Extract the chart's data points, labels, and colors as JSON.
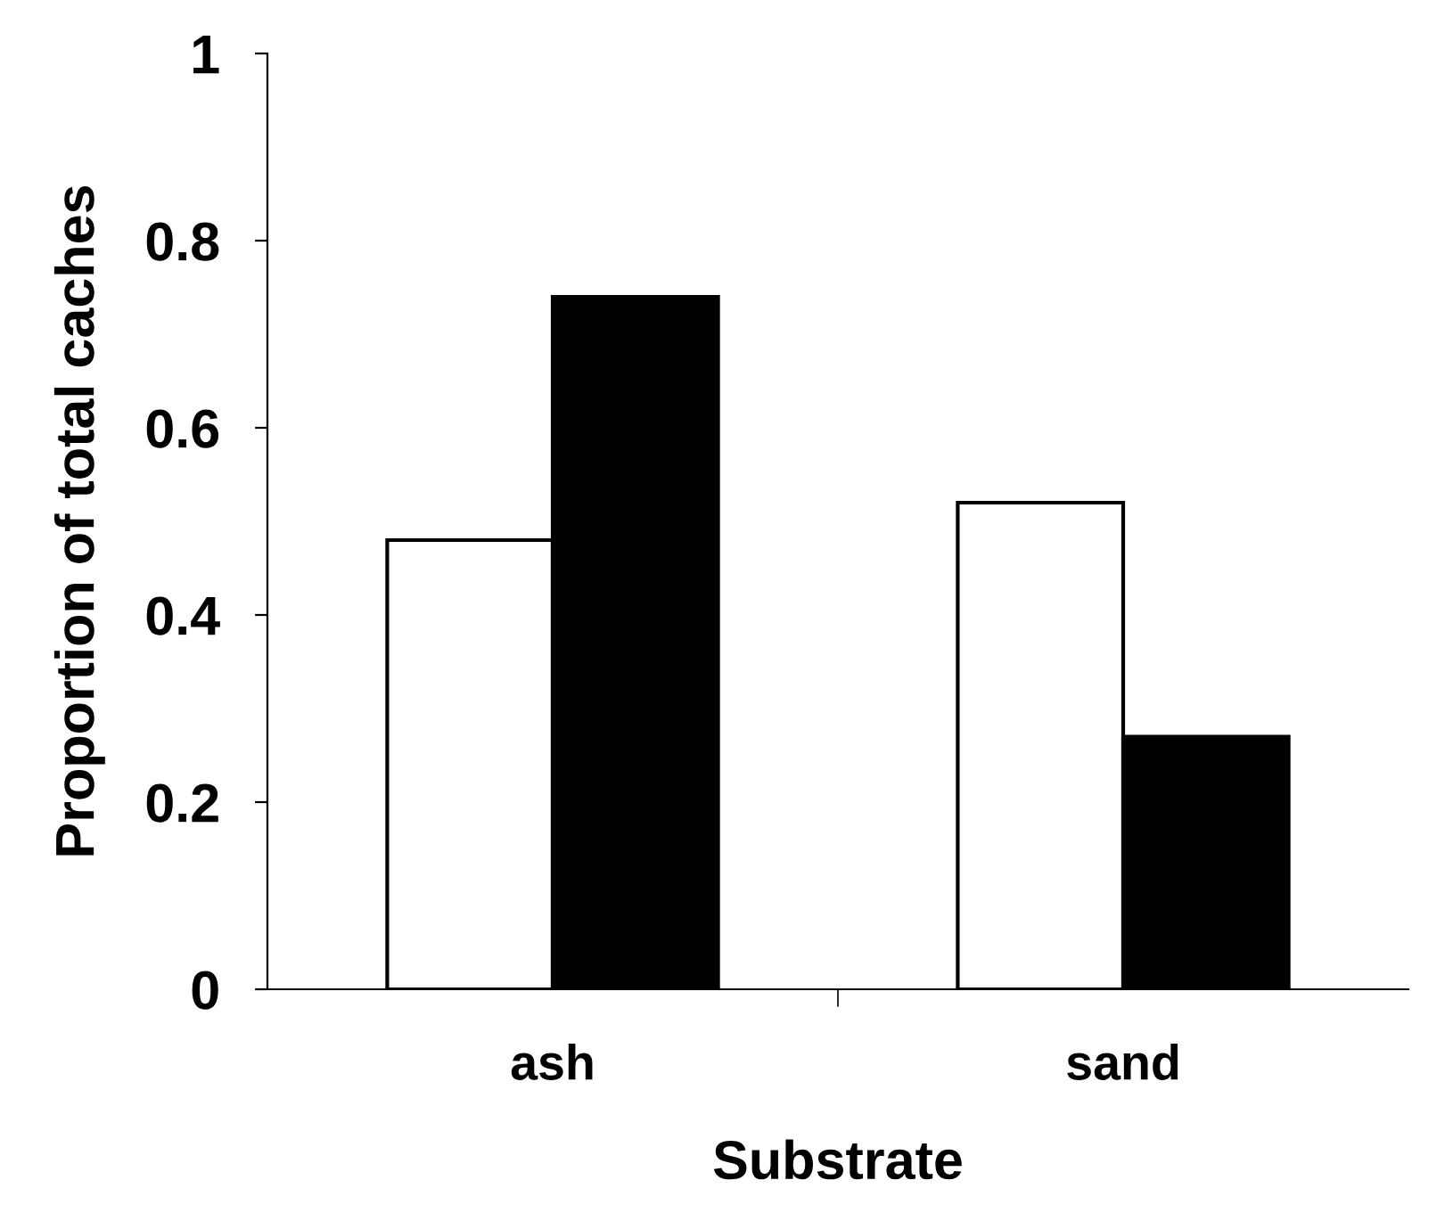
{
  "chart_data": {
    "type": "bar",
    "xlabel": "Substrate",
    "ylabel": "Proportion of total caches",
    "categories": [
      "ash",
      "sand"
    ],
    "series": [
      {
        "color": "#ffffff",
        "values": [
          0.48,
          0.52
        ]
      },
      {
        "color": "#000000",
        "values": [
          0.74,
          0.27
        ]
      }
    ],
    "ylim": [
      0,
      1
    ],
    "yticks": [
      0,
      0.2,
      0.4,
      0.6,
      0.8,
      1
    ],
    "grid": false,
    "legend": false
  }
}
